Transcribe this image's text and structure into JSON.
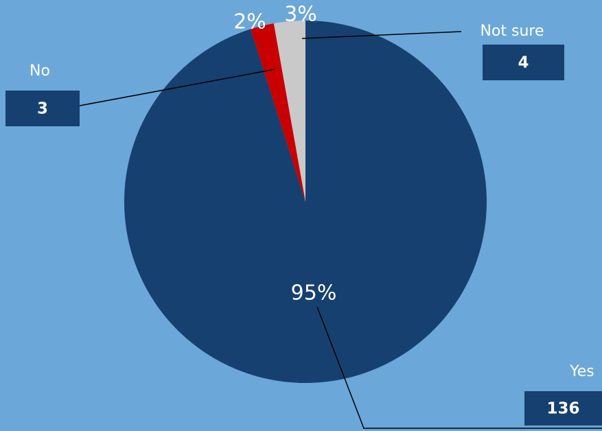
{
  "chart_data": {
    "type": "pie",
    "title": "",
    "slices": [
      {
        "label": "Yes",
        "value": 136,
        "percent_label": "95%",
        "color": "#16406f"
      },
      {
        "label": "No",
        "value": 3,
        "percent_label": "2%",
        "color": "#c90000"
      },
      {
        "label": "Not sure",
        "value": 4,
        "percent_label": "3%",
        "color": "#c9c9c9"
      }
    ],
    "background_color": "#6ba7d9",
    "callout_box_color": "#16406f",
    "label_color": "#ffffff"
  }
}
